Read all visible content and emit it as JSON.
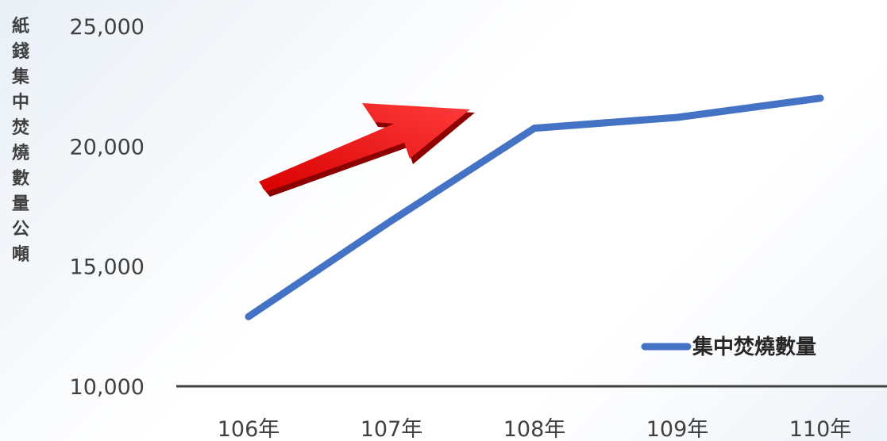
{
  "chart_data": {
    "type": "line",
    "categories": [
      "106年",
      "107年",
      "108年",
      "109年",
      "110年"
    ],
    "series": [
      {
        "name": "集中焚燒數量",
        "values": [
          12900,
          16900,
          20750,
          21200,
          22000
        ],
        "color": "#4472C4"
      }
    ],
    "ylabel": "紙錢集中焚燒數量公噸",
    "ylim": [
      10000,
      25000
    ],
    "yticks": [
      10000,
      15000,
      20000,
      25000
    ],
    "ytick_labels": [
      "10,000",
      "15,000",
      "20,000",
      "25,000"
    ],
    "grid": false,
    "legend_position": "bottom-right",
    "annotation": {
      "type": "arrow",
      "direction": "up-right",
      "color": "#e01515"
    }
  }
}
